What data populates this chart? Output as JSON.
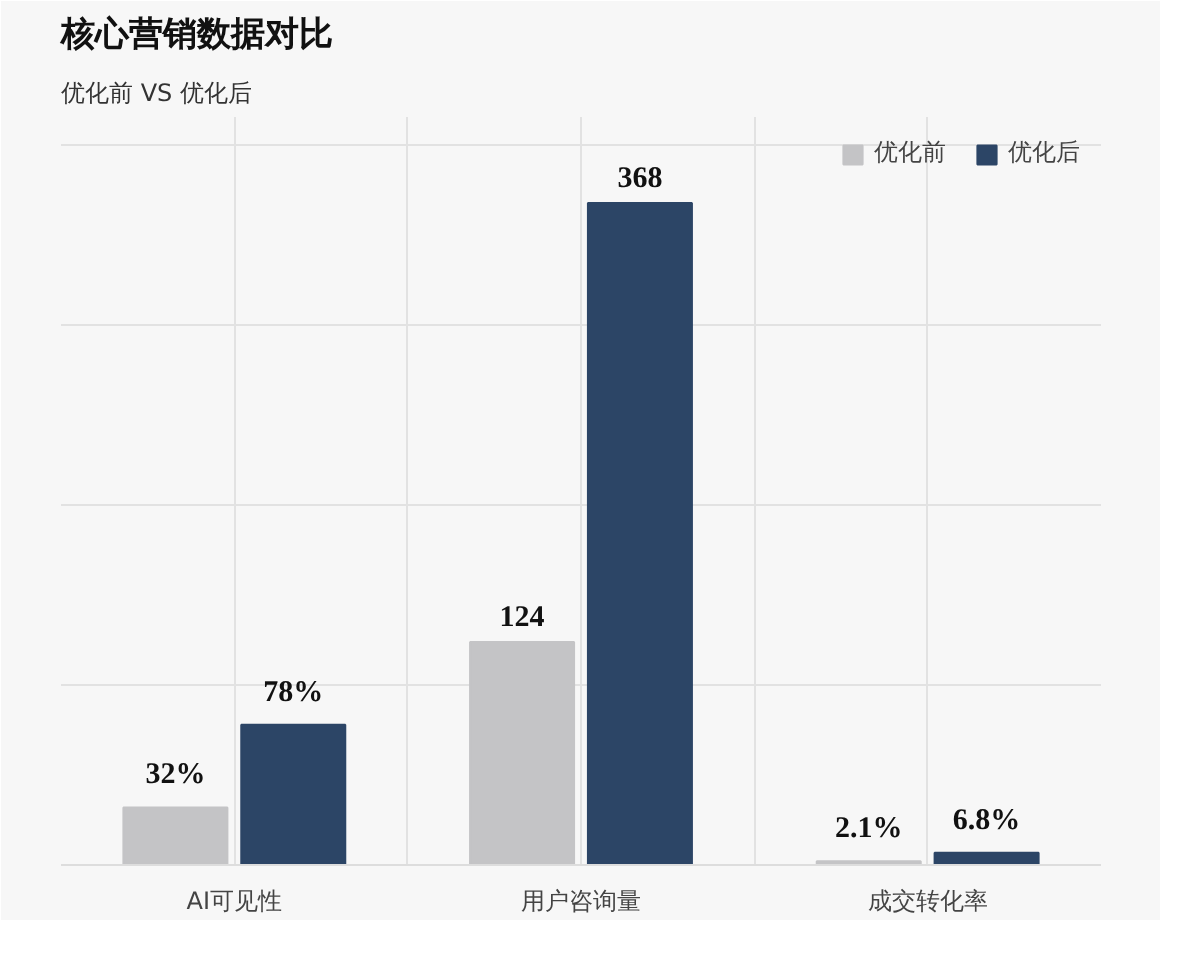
{
  "chart_data": {
    "type": "bar",
    "title": "核心营销数据对比",
    "subtitle": "优化前 VS 优化后",
    "categories": [
      "AI可见性",
      "用户咨询量",
      "成交转化率"
    ],
    "grid": true,
    "legend": "top right",
    "series": [
      {
        "name": "优化前",
        "color": "#c4c4c6",
        "values": [
          32,
          124,
          2.1
        ],
        "value_labels": [
          "32%",
          "124",
          "2.1%"
        ]
      },
      {
        "name": "优化后",
        "color": "#2c4566",
        "values": [
          78,
          368,
          6.8
        ],
        "value_labels": [
          "78%",
          "368",
          "6.8%"
        ]
      }
    ]
  }
}
